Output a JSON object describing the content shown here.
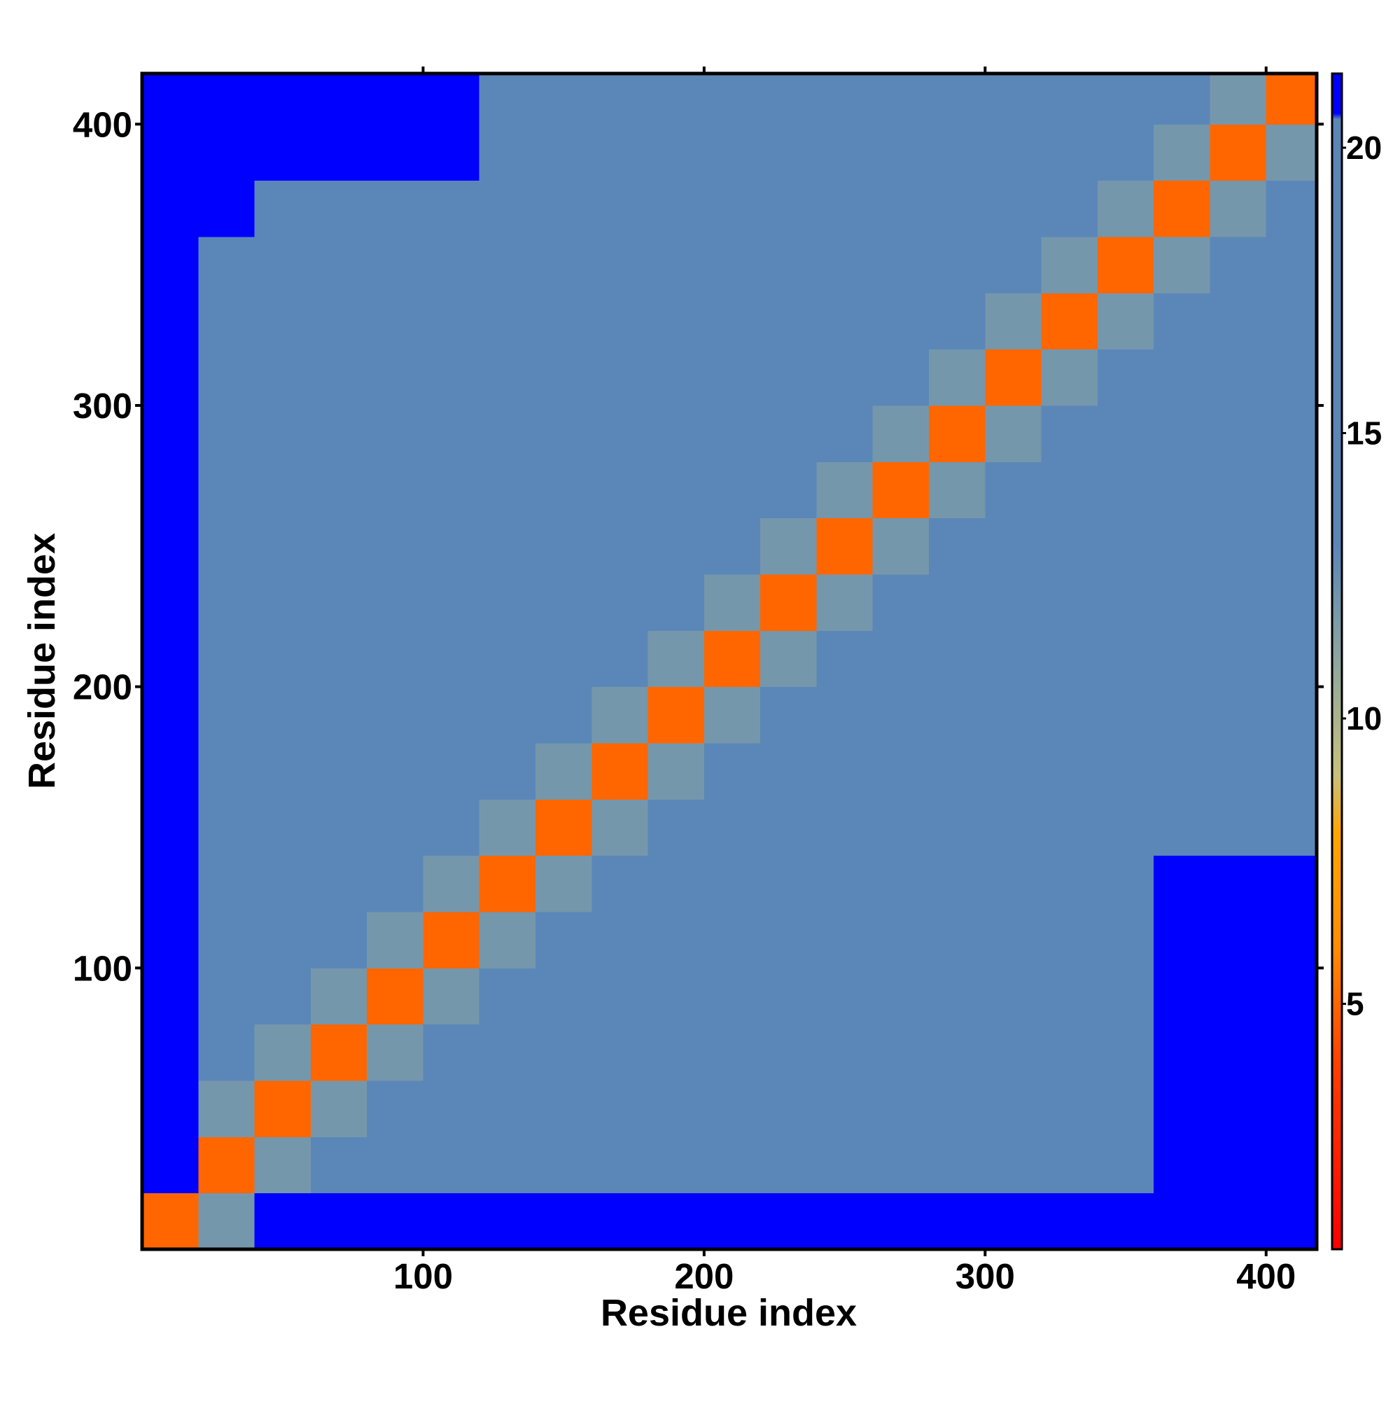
{
  "chart_data": {
    "type": "heatmap",
    "xlabel": "Residue index",
    "ylabel": "Residue index",
    "x_bins": [
      0,
      20,
      40,
      60,
      80,
      100,
      120,
      140,
      160,
      180,
      200,
      220,
      240,
      260,
      280,
      300,
      320,
      340,
      360,
      380,
      400,
      418
    ],
    "y_bins": [
      0,
      20,
      40,
      60,
      80,
      100,
      120,
      140,
      160,
      180,
      200,
      220,
      240,
      260,
      280,
      300,
      320,
      340,
      360,
      380,
      400,
      418
    ],
    "values": [
      [
        5,
        12,
        21,
        21,
        21,
        21,
        21,
        21,
        21,
        21,
        21,
        21,
        21,
        21,
        21,
        21,
        21,
        21,
        21,
        21,
        21
      ],
      [
        21,
        5,
        12,
        19,
        19,
        19,
        19,
        19,
        19,
        19,
        19,
        19,
        19,
        19,
        19,
        19,
        19,
        19,
        21,
        21,
        21
      ],
      [
        21,
        12,
        5,
        12,
        17,
        17,
        18,
        17,
        17,
        17,
        18,
        17,
        17,
        17,
        17,
        18,
        17,
        19,
        21,
        21,
        21
      ],
      [
        21,
        17,
        12,
        5,
        12,
        17,
        17,
        17,
        18,
        17,
        17,
        18,
        17,
        17,
        17,
        17,
        17,
        19,
        21,
        21,
        21
      ],
      [
        21,
        17,
        17,
        12,
        5,
        12,
        17,
        17,
        17,
        18,
        17,
        17,
        17,
        18,
        17,
        17,
        17,
        19,
        21,
        21,
        21
      ],
      [
        21,
        17,
        17,
        17,
        12,
        5,
        12,
        17,
        17,
        17,
        18,
        17,
        17,
        17,
        17,
        17,
        18,
        19,
        21,
        21,
        21
      ],
      [
        21,
        17,
        17,
        17,
        17,
        12,
        5,
        12,
        17,
        17,
        17,
        17,
        18,
        17,
        17,
        17,
        17,
        17,
        21,
        21,
        21
      ],
      [
        21,
        17,
        18,
        17,
        17,
        17,
        12,
        5,
        12,
        17,
        17,
        17,
        17,
        17,
        18,
        17,
        17,
        17,
        17,
        18,
        19
      ],
      [
        21,
        17,
        17,
        17,
        17,
        17,
        17,
        12,
        5,
        12,
        17,
        17,
        17,
        17,
        17,
        17,
        18,
        17,
        17,
        17,
        19
      ],
      [
        21,
        17,
        17,
        17,
        17,
        17,
        17,
        17,
        12,
        5,
        12,
        17,
        17,
        17,
        17,
        17,
        17,
        17,
        17,
        17,
        19
      ],
      [
        21,
        17,
        17,
        17,
        17,
        18,
        17,
        17,
        17,
        12,
        5,
        12,
        17,
        17,
        17,
        18,
        17,
        17,
        17,
        17,
        19
      ],
      [
        21,
        17,
        18,
        17,
        17,
        17,
        17,
        17,
        17,
        17,
        12,
        5,
        12,
        17,
        17,
        17,
        17,
        18,
        17,
        17,
        19
      ],
      [
        21,
        17,
        17,
        17,
        17,
        17,
        17,
        17,
        17,
        17,
        17,
        12,
        5,
        12,
        17,
        17,
        17,
        17,
        18,
        17,
        19
      ],
      [
        21,
        17,
        17,
        17,
        18,
        17,
        17,
        17,
        17,
        17,
        17,
        17,
        12,
        5,
        12,
        17,
        17,
        17,
        17,
        17,
        19
      ],
      [
        21,
        17,
        17,
        18,
        17,
        17,
        17,
        17,
        17,
        17,
        17,
        17,
        17,
        12,
        5,
        12,
        17,
        17,
        17,
        18,
        19
      ],
      [
        21,
        17,
        17,
        17,
        17,
        17,
        17,
        17,
        17,
        17,
        17,
        17,
        17,
        17,
        12,
        5,
        12,
        17,
        17,
        17,
        19
      ],
      [
        21,
        17,
        17,
        17,
        17,
        17,
        17,
        17,
        17,
        17,
        18,
        17,
        17,
        17,
        17,
        12,
        5,
        12,
        17,
        18,
        17
      ],
      [
        21,
        17,
        17,
        17,
        17,
        17,
        17,
        17,
        17,
        18,
        17,
        17,
        17,
        17,
        17,
        17,
        12,
        5,
        12,
        17,
        17
      ],
      [
        21,
        21,
        19,
        19,
        17,
        17,
        17,
        17,
        17,
        17,
        17,
        18,
        17,
        17,
        17,
        17,
        17,
        12,
        5,
        12,
        17
      ],
      [
        21,
        21,
        21,
        21,
        21,
        21,
        19,
        17,
        18,
        17,
        17,
        17,
        17,
        18,
        17,
        17,
        17,
        17,
        12,
        5,
        12
      ],
      [
        21,
        21,
        21,
        21,
        21,
        21,
        19,
        19,
        19,
        19,
        19,
        19,
        19,
        19,
        19,
        19,
        19,
        17,
        17,
        12,
        5
      ]
    ],
    "xlim": [
      0,
      418
    ],
    "ylim": [
      0,
      418
    ],
    "xticks": [
      100,
      200,
      300,
      400
    ],
    "yticks": [
      100,
      200,
      300,
      400
    ],
    "colorbar": {
      "clim": [
        0.7,
        21.3
      ],
      "ticks": [
        5,
        10,
        15,
        20
      ],
      "colorscale": [
        [
          0.7,
          "#ff0000"
        ],
        [
          4,
          "#ff4000"
        ],
        [
          6,
          "#ff8c00"
        ],
        [
          8,
          "#ffa500"
        ],
        [
          9,
          "#c8c07a"
        ],
        [
          11,
          "#8fa6a0"
        ],
        [
          13,
          "#5b87b8"
        ],
        [
          20.5,
          "#5b87b8"
        ],
        [
          20.6,
          "#0000ff"
        ],
        [
          21.3,
          "#0000ff"
        ]
      ]
    }
  }
}
